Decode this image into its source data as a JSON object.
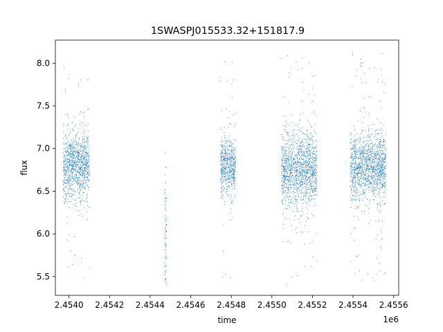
{
  "chart_data": {
    "type": "scatter",
    "title": "1SWASPJ015533.32+151817.9",
    "xlabel": "time",
    "ylabel": "flux",
    "x_offset_label": "1e6",
    "xlim": [
      2453933,
      2455625
    ],
    "ylim": [
      5.28,
      8.27
    ],
    "x_ticks": [
      2454000,
      2454200,
      2454400,
      2454600,
      2454800,
      2455000,
      2455200,
      2455400,
      2455600
    ],
    "x_tick_labels": [
      "2.4540",
      "2.4542",
      "2.4544",
      "2.4546",
      "2.4548",
      "2.4550",
      "2.4552",
      "2.4554",
      "2.4556"
    ],
    "y_ticks": [
      5.5,
      6.0,
      6.5,
      7.0,
      7.5,
      8.0
    ],
    "y_tick_labels": [
      "5.5",
      "6.0",
      "6.5",
      "7.0",
      "7.5",
      "8.0"
    ],
    "grid": false,
    "legend": "none",
    "point_color": "#1f77b4",
    "observing_seasons": [
      {
        "x_start": 2453970,
        "x_end": 2454100,
        "flux_center": 6.8,
        "flux_spread": 0.2,
        "flux_min": 5.45,
        "flux_max": 8.05
      },
      {
        "x_start": 2454470,
        "x_end": 2454480,
        "flux_center": 6.0,
        "flux_spread": 0.4,
        "flux_min": 5.4,
        "flux_max": 7.1
      },
      {
        "x_start": 2454745,
        "x_end": 2454820,
        "flux_center": 6.8,
        "flux_spread": 0.17,
        "flux_min": 5.45,
        "flux_max": 8.05
      },
      {
        "x_start": 2455045,
        "x_end": 2455220,
        "flux_center": 6.75,
        "flux_spread": 0.22,
        "flux_min": 5.4,
        "flux_max": 8.15
      },
      {
        "x_start": 2455385,
        "x_end": 2455560,
        "flux_center": 6.8,
        "flux_spread": 0.2,
        "flux_min": 5.45,
        "flux_max": 8.15
      }
    ]
  }
}
